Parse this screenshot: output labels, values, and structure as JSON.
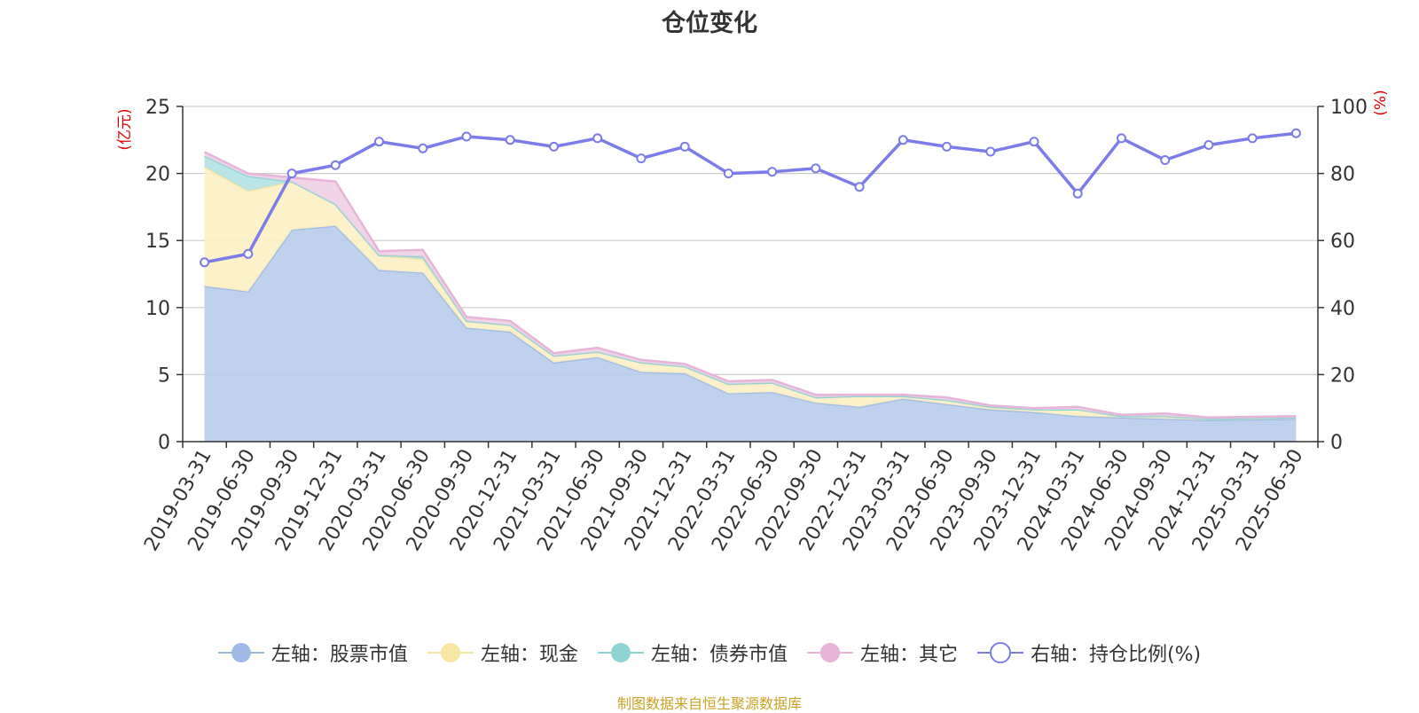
{
  "chart_data": {
    "type": "area",
    "title": "仓位变化",
    "y_left_unit": "(亿元)",
    "y_right_unit": "(%)",
    "ylim_left": [
      0,
      25
    ],
    "yticks_left": [
      0,
      5,
      10,
      15,
      20,
      25
    ],
    "ylim_right": [
      0,
      100
    ],
    "yticks_right": [
      0,
      20,
      40,
      60,
      80,
      100
    ],
    "grid": true,
    "legend_position": "bottom",
    "categories": [
      "2019-03-31",
      "2019-06-30",
      "2019-09-30",
      "2019-12-31",
      "2020-03-31",
      "2020-06-30",
      "2020-09-30",
      "2020-12-31",
      "2021-03-31",
      "2021-06-30",
      "2021-09-30",
      "2021-12-31",
      "2022-03-31",
      "2022-06-30",
      "2022-09-30",
      "2022-12-31",
      "2023-03-31",
      "2023-06-30",
      "2023-09-30",
      "2023-12-31",
      "2024-03-31",
      "2024-06-30",
      "2024-09-30",
      "2024-12-31",
      "2025-03-31",
      "2025-06-30"
    ],
    "series": [
      {
        "name": "左轴：股票市值",
        "axis": "left",
        "type": "area",
        "color": "#9fbbe3",
        "fill": "#b8cdeb",
        "values": [
          11.6,
          11.2,
          15.8,
          16.1,
          12.8,
          12.6,
          8.5,
          8.2,
          5.9,
          6.3,
          5.2,
          5.1,
          3.6,
          3.7,
          2.9,
          2.6,
          3.2,
          2.8,
          2.4,
          2.2,
          1.9,
          1.8,
          1.7,
          1.6,
          1.65,
          1.7
        ]
      },
      {
        "name": "左轴：现金",
        "axis": "left",
        "type": "area",
        "color": "#f7e6a2",
        "fill": "#fcefc2",
        "values": [
          8.9,
          7.5,
          3.6,
          1.6,
          1.1,
          1.0,
          0.5,
          0.5,
          0.5,
          0.4,
          0.7,
          0.5,
          0.7,
          0.7,
          0.4,
          0.8,
          0.2,
          0.3,
          0.2,
          0.2,
          0.5,
          0.1,
          0.2,
          0.1,
          0.1,
          0.1
        ]
      },
      {
        "name": "左轴：债券市值",
        "axis": "left",
        "type": "area",
        "color": "#8fd3d3",
        "fill": "#b2e2e2",
        "values": [
          0.8,
          1.1,
          0,
          0,
          0,
          0.2,
          0,
          0,
          0,
          0,
          0,
          0,
          0,
          0,
          0,
          0,
          0,
          0,
          0,
          0,
          0,
          0,
          0,
          0,
          0,
          0
        ]
      },
      {
        "name": "左轴：其它",
        "axis": "left",
        "type": "area",
        "color": "#e6b3d9",
        "fill": "#f0cfe6",
        "values": [
          0.3,
          0.2,
          0.3,
          1.7,
          0.3,
          0.5,
          0.3,
          0.3,
          0.2,
          0.3,
          0.2,
          0.2,
          0.2,
          0.2,
          0.2,
          0.1,
          0.1,
          0.2,
          0.1,
          0.1,
          0.2,
          0.1,
          0.2,
          0.1,
          0.1,
          0.1
        ]
      },
      {
        "name": "右轴：持仓比例(%)",
        "axis": "right",
        "type": "line",
        "color": "#7b7bea",
        "values": [
          53.5,
          56,
          80,
          82.5,
          89.5,
          87.5,
          91,
          90,
          88,
          90.5,
          84.5,
          88,
          80,
          80.5,
          81.5,
          76,
          90,
          88,
          86.5,
          89.5,
          74,
          90.5,
          84,
          88.5,
          90.5,
          92
        ]
      }
    ],
    "source_note": "制图数据来自恒生聚源数据库"
  }
}
